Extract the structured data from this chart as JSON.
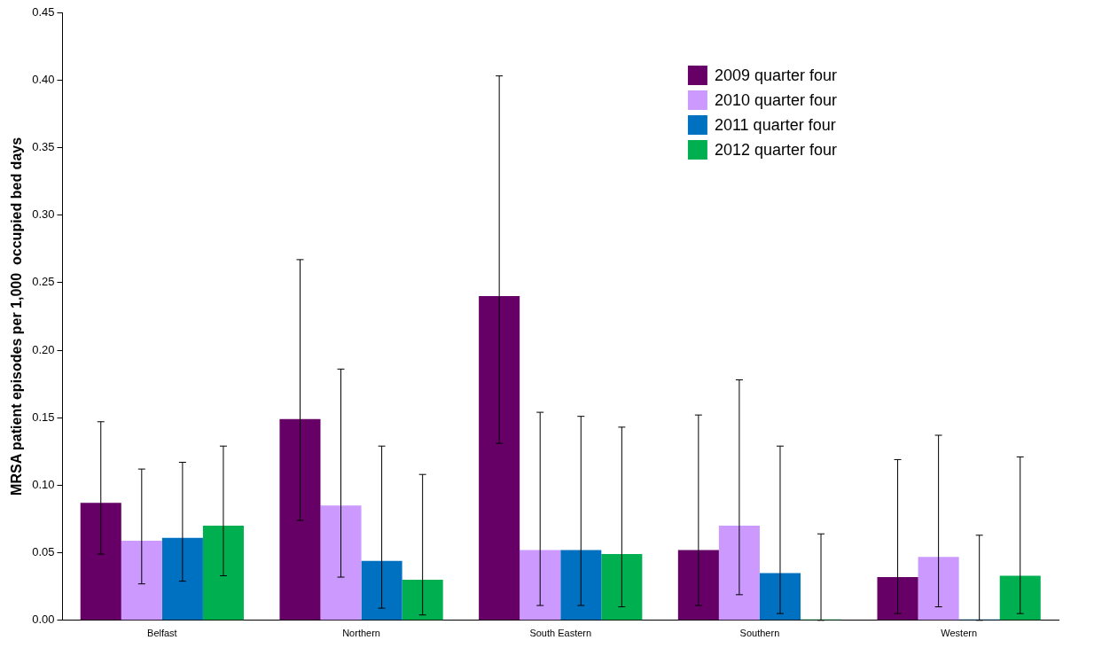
{
  "chart_data": {
    "type": "bar",
    "ylabel": "MRSA patient episodes per 1,000  occupied bed days",
    "categories": [
      "Belfast",
      "Northern",
      "South Eastern",
      "Southern",
      "Western"
    ],
    "series": [
      {
        "name": "2009 quarter four",
        "color": "#660066",
        "values": [
          0.087,
          0.149,
          0.24,
          0.052,
          0.032
        ],
        "errors": [
          [
            0.049,
            0.147
          ],
          [
            0.074,
            0.267
          ],
          [
            0.131,
            0.403
          ],
          [
            0.011,
            0.152
          ],
          [
            0.005,
            0.119
          ]
        ]
      },
      {
        "name": "2010 quarter four",
        "color": "#cc99ff",
        "values": [
          0.059,
          0.085,
          0.052,
          0.07,
          0.047
        ],
        "errors": [
          [
            0.027,
            0.112
          ],
          [
            0.032,
            0.186
          ],
          [
            0.011,
            0.154
          ],
          [
            0.019,
            0.178
          ],
          [
            0.01,
            0.137
          ]
        ]
      },
      {
        "name": "2011 quarter four",
        "color": "#0070c0",
        "values": [
          0.061,
          0.044,
          0.052,
          0.035,
          0
        ],
        "errors": [
          [
            0.029,
            0.117
          ],
          [
            0.009,
            0.129
          ],
          [
            0.011,
            0.151
          ],
          [
            0.005,
            0.129
          ],
          [
            0,
            0.063
          ]
        ]
      },
      {
        "name": "2012 quarter four",
        "color": "#00b050",
        "values": [
          0.07,
          0.03,
          0.049,
          0,
          0.033
        ],
        "errors": [
          [
            0.033,
            0.129
          ],
          [
            0.004,
            0.108
          ],
          [
            0.01,
            0.143
          ],
          [
            0,
            0.064
          ],
          [
            0.005,
            0.121
          ]
        ]
      }
    ],
    "ylim": [
      0,
      0.45
    ],
    "yticks": [
      {
        "value": 0,
        "label": "0.00"
      },
      {
        "value": 0.05,
        "label": "0.05"
      },
      {
        "value": 0.1,
        "label": "0.10"
      },
      {
        "value": 0.15,
        "label": "0.15"
      },
      {
        "value": 0.2,
        "label": "0.20"
      },
      {
        "value": 0.25,
        "label": "0.25"
      },
      {
        "value": 0.3,
        "label": "0.30"
      },
      {
        "value": 0.35,
        "label": "0.35"
      },
      {
        "value": 0.4,
        "label": "0.40"
      },
      {
        "value": 0.45,
        "label": "0.45"
      }
    ],
    "grid": false,
    "legend": "top right"
  }
}
